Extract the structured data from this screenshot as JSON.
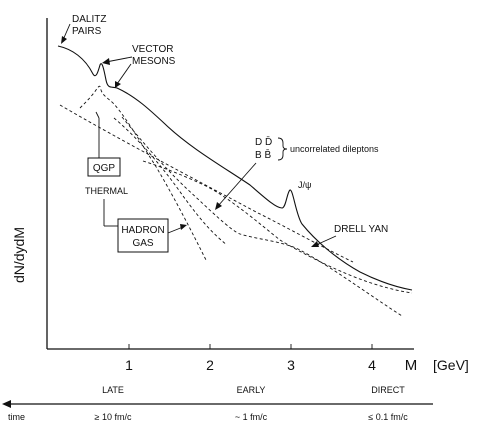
{
  "chart_data": {
    "type": "line",
    "title": "",
    "ylabel": "dN/dydM",
    "xlabel": "M",
    "xunit": "[GeV]",
    "xlim": [
      0,
      4.7
    ],
    "x_ticks": [
      "1",
      "2",
      "3",
      "4"
    ],
    "log_y": false,
    "grid": false,
    "legend": "none",
    "series": [
      {
        "kind": "total",
        "points": [
          [
            0.0,
            1.0
          ],
          [
            0.2,
            0.97
          ],
          [
            0.4,
            0.9
          ],
          [
            0.55,
            0.78
          ],
          [
            0.62,
            0.9
          ],
          [
            0.7,
            0.74
          ],
          [
            0.8,
            0.75
          ],
          [
            0.9,
            0.72
          ],
          [
            1.2,
            0.64
          ],
          [
            1.5,
            0.55
          ],
          [
            2.0,
            0.45
          ],
          [
            2.5,
            0.38
          ],
          [
            2.85,
            0.32
          ],
          [
            2.95,
            0.44
          ],
          [
            3.05,
            0.3
          ],
          [
            3.5,
            0.26
          ],
          [
            4.0,
            0.21
          ],
          [
            4.5,
            0.18
          ]
        ]
      },
      {
        "kind": "vector-mesons",
        "points": [
          [
            0.3,
            0.66
          ],
          [
            0.55,
            0.72
          ],
          [
            0.65,
            0.82
          ],
          [
            0.75,
            0.66
          ],
          [
            1.0,
            0.5
          ],
          [
            1.5,
            0.3
          ],
          [
            2.0,
            0.17
          ],
          [
            2.5,
            0.1
          ]
        ]
      },
      {
        "kind": "qgp-thermal",
        "points": [
          [
            0.0,
            0.58
          ],
          [
            1.0,
            0.42
          ],
          [
            2.0,
            0.3
          ],
          [
            3.0,
            0.2
          ],
          [
            3.5,
            0.16
          ]
        ]
      },
      {
        "kind": "hadron-gas",
        "points": [
          [
            0.7,
            0.68
          ],
          [
            1.2,
            0.5
          ],
          [
            1.6,
            0.37
          ],
          [
            2.0,
            0.22
          ]
        ]
      },
      {
        "kind": "uncorrelated-dileptons",
        "points": [
          [
            1.3,
            0.48
          ],
          [
            1.8,
            0.34
          ],
          [
            2.3,
            0.28
          ],
          [
            3.0,
            0.24
          ],
          [
            4.0,
            0.2
          ],
          [
            4.5,
            0.18
          ]
        ]
      },
      {
        "kind": "drell-yan",
        "points": [
          [
            1.0,
            0.56
          ],
          [
            2.0,
            0.38
          ],
          [
            2.8,
            0.24
          ],
          [
            3.5,
            0.12
          ],
          [
            4.3,
            0.06
          ]
        ]
      }
    ],
    "annotations": {
      "dalitz": [
        "DALITZ",
        "PAIRS"
      ],
      "vector_mesons": [
        "VECTOR",
        "MESONS"
      ],
      "qgp": "QGP",
      "thermal": "THERMAL",
      "hadron_gas": [
        "HADRON",
        "GAS"
      ],
      "dd_bb": [
        "D D̄",
        "B B̄"
      ],
      "uncorrelated": "uncorrelated dileptons",
      "jpsi": "J/ψ",
      "drell_yan": "DRELL YAN"
    },
    "time_axis": {
      "label": "time",
      "stages": [
        "LATE",
        "EARLY",
        "DIRECT"
      ],
      "times": [
        "≥ 10 fm/c",
        "~ 1 fm/c",
        "≤ 0.1 fm/c"
      ]
    }
  }
}
